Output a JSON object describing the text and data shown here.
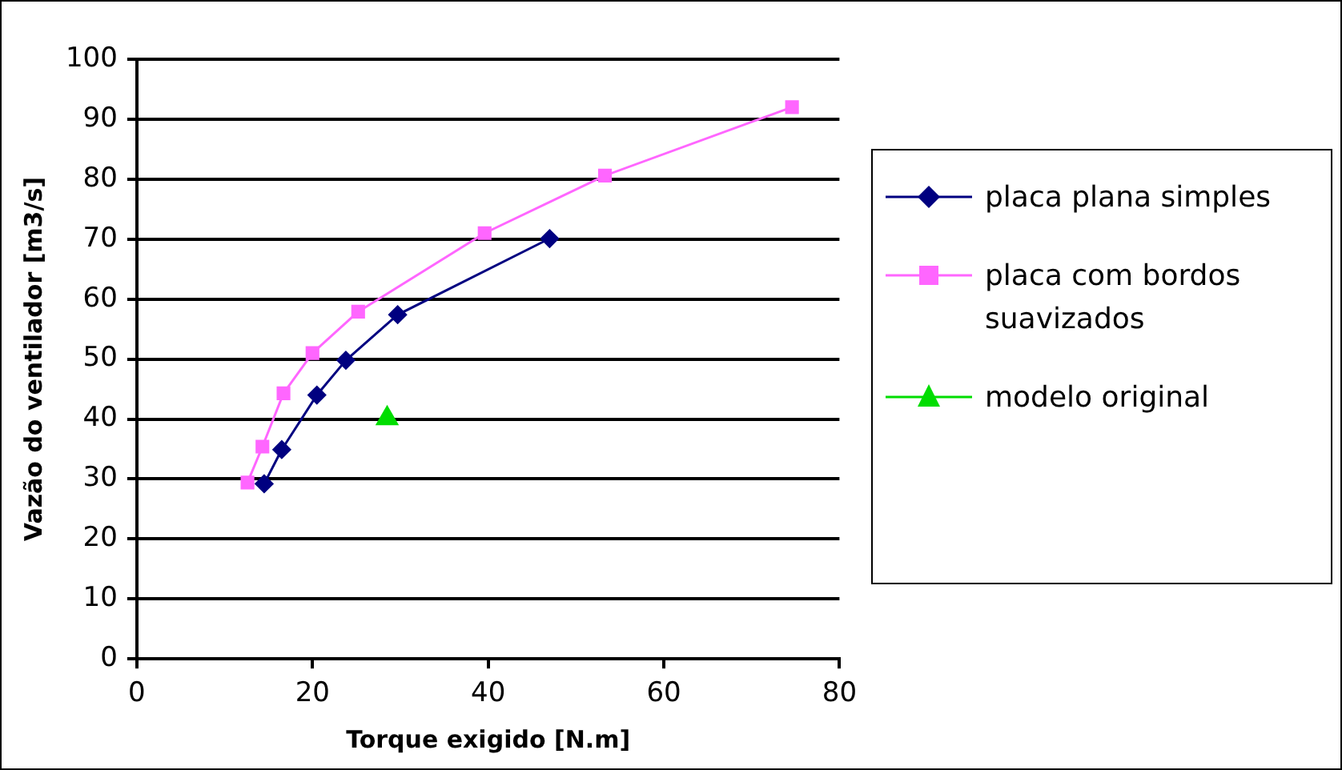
{
  "chart_data": {
    "type": "line",
    "xlabel": "Torque exigido [N.m]",
    "ylabel": "Vazão do ventilador [m3/s]",
    "xlim": [
      0,
      80
    ],
    "xticks": [
      0,
      20,
      40,
      60,
      80
    ],
    "ylim": [
      0,
      100
    ],
    "yticks": [
      0,
      10,
      20,
      30,
      40,
      50,
      60,
      70,
      80,
      90,
      100
    ],
    "grid": "y",
    "legend": "right",
    "series": [
      {
        "name": "placa plana simples",
        "color": "#000080",
        "marker": "diamond",
        "x": [
          14.5,
          16.5,
          20.5,
          23.8,
          29.7,
          47.0
        ],
        "values": [
          29.2,
          34.9,
          44,
          49.8,
          57.4,
          70.1
        ]
      },
      {
        "name": "placa com bordos suavizados",
        "color": "#ff66ff",
        "marker": "square",
        "x": [
          12.6,
          14.3,
          16.7,
          20.0,
          25.2,
          39.6,
          53.3,
          74.6
        ],
        "values": [
          29.4,
          35.4,
          44.3,
          51,
          57.9,
          71.0,
          80.6,
          92.0
        ]
      },
      {
        "name": "modelo original",
        "color": "#00dd00",
        "marker": "triangle",
        "x": [
          28.5
        ],
        "values": [
          40.1
        ]
      }
    ]
  }
}
